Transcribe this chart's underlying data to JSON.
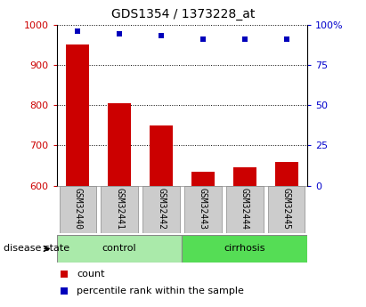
{
  "title": "GDS1354 / 1373228_at",
  "samples": [
    "GSM32440",
    "GSM32441",
    "GSM32442",
    "GSM32443",
    "GSM32444",
    "GSM32445"
  ],
  "counts": [
    950,
    805,
    750,
    635,
    645,
    660
  ],
  "percentiles": [
    96,
    94,
    93,
    91,
    91,
    91
  ],
  "groups": [
    {
      "label": "control",
      "indices": [
        0,
        1,
        2
      ],
      "color": "#aaeaaa"
    },
    {
      "label": "cirrhosis",
      "indices": [
        3,
        4,
        5
      ],
      "color": "#55dd55"
    }
  ],
  "group_label": "disease state",
  "ylim_left": [
    600,
    1000
  ],
  "ylim_right": [
    0,
    100
  ],
  "yticks_left": [
    600,
    700,
    800,
    900,
    1000
  ],
  "yticks_right": [
    0,
    25,
    50,
    75,
    100
  ],
  "ytick_labels_right": [
    "0",
    "25",
    "50",
    "75",
    "100%"
  ],
  "bar_color": "#cc0000",
  "marker_color": "#0000bb",
  "bar_width": 0.55,
  "grid_color": "#000000",
  "axis_color_left": "#cc0000",
  "axis_color_right": "#0000cc",
  "tick_box_color": "#cccccc",
  "legend_count_label": "count",
  "legend_percentile_label": "percentile rank within the sample",
  "xlim": [
    -0.5,
    5.5
  ]
}
